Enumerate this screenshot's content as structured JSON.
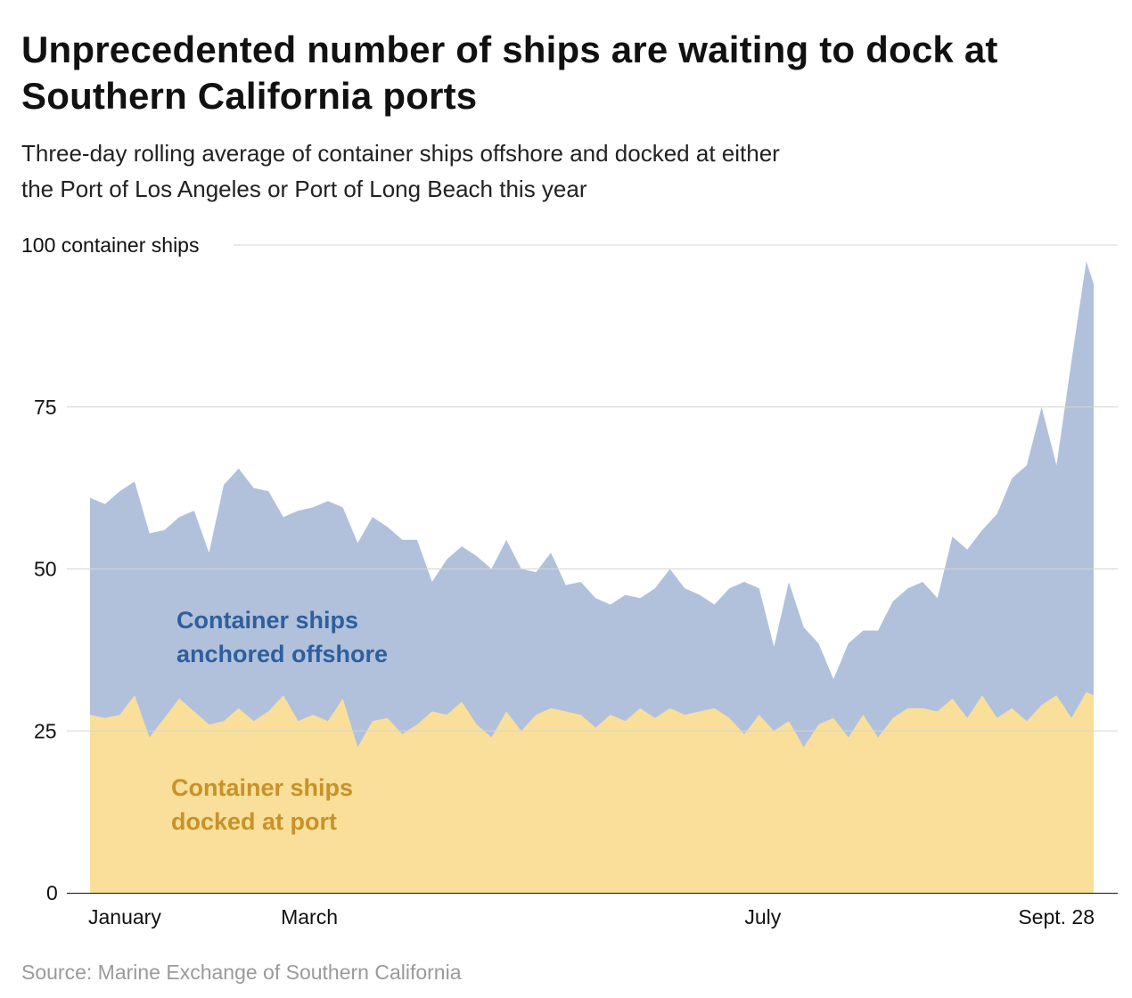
{
  "header": {
    "title": "Unprecedented number of ships are waiting to dock at Southern California ports",
    "subtitle_line1": "Three-day rolling average of container ships offshore and docked at either",
    "subtitle_line2": "the Port of Los Angeles or Port of Long Beach this year"
  },
  "footer": {
    "source": "Source: Marine Exchange of Southern California"
  },
  "colors": {
    "offshore": "#b1c1dc",
    "docked": "#f9df9a",
    "offshore_label": "#2e5f9c",
    "docked_label": "#c8922a",
    "grid": "#d4d4d4",
    "axis": "#333333"
  },
  "chart_data": {
    "type": "area",
    "stacked": true,
    "title": "Unprecedented number of ships are waiting to dock at Southern California ports",
    "ylabel": "",
    "y_unit_label": "100 container ships",
    "ylim": [
      0,
      100
    ],
    "yticks": [
      {
        "value": 0,
        "label": "0"
      },
      {
        "value": 25,
        "label": "25"
      },
      {
        "value": 50,
        "label": "50"
      },
      {
        "value": 75,
        "label": "75"
      },
      {
        "value": 100,
        "label": "100 container ships"
      }
    ],
    "xlim": [
      "2021-01-01",
      "2021-09-28"
    ],
    "xticks": [
      {
        "date": "2021-01-01",
        "label": "January"
      },
      {
        "date": "2021-03-01",
        "label": "March"
      },
      {
        "date": "2021-07-01",
        "label": "July"
      },
      {
        "date": "2021-09-28",
        "label": "Sept. 28"
      }
    ],
    "grid": true,
    "series": [
      {
        "name": "Container ships docked at port",
        "label_line1": "Container ships",
        "label_line2": "docked at port",
        "points": [
          [
            "2021-01-01",
            27.5
          ],
          [
            "2021-01-05",
            27.0
          ],
          [
            "2021-01-09",
            27.5
          ],
          [
            "2021-01-13",
            30.5
          ],
          [
            "2021-01-17",
            24.0
          ],
          [
            "2021-01-21",
            27.0
          ],
          [
            "2021-01-25",
            30.0
          ],
          [
            "2021-01-29",
            28.0
          ],
          [
            "2021-02-02",
            26.0
          ],
          [
            "2021-02-06",
            26.5
          ],
          [
            "2021-02-10",
            28.5
          ],
          [
            "2021-02-14",
            26.5
          ],
          [
            "2021-02-18",
            28.0
          ],
          [
            "2021-02-22",
            30.5
          ],
          [
            "2021-02-26",
            26.5
          ],
          [
            "2021-03-02",
            27.5
          ],
          [
            "2021-03-06",
            26.5
          ],
          [
            "2021-03-10",
            30.0
          ],
          [
            "2021-03-14",
            22.5
          ],
          [
            "2021-03-18",
            26.5
          ],
          [
            "2021-03-22",
            27.0
          ],
          [
            "2021-03-26",
            24.5
          ],
          [
            "2021-03-30",
            26.0
          ],
          [
            "2021-04-03",
            28.0
          ],
          [
            "2021-04-07",
            27.5
          ],
          [
            "2021-04-11",
            29.5
          ],
          [
            "2021-04-15",
            26.0
          ],
          [
            "2021-04-19",
            24.0
          ],
          [
            "2021-04-23",
            28.0
          ],
          [
            "2021-04-27",
            25.0
          ],
          [
            "2021-05-01",
            27.5
          ],
          [
            "2021-05-05",
            28.5
          ],
          [
            "2021-05-09",
            28.0
          ],
          [
            "2021-05-13",
            27.5
          ],
          [
            "2021-05-17",
            25.5
          ],
          [
            "2021-05-21",
            27.5
          ],
          [
            "2021-05-25",
            26.5
          ],
          [
            "2021-05-29",
            28.5
          ],
          [
            "2021-06-02",
            27.0
          ],
          [
            "2021-06-06",
            28.5
          ],
          [
            "2021-06-10",
            27.5
          ],
          [
            "2021-06-14",
            28.0
          ],
          [
            "2021-06-18",
            28.5
          ],
          [
            "2021-06-22",
            27.0
          ],
          [
            "2021-06-26",
            24.5
          ],
          [
            "2021-06-30",
            27.5
          ],
          [
            "2021-07-04",
            25.0
          ],
          [
            "2021-07-08",
            26.5
          ],
          [
            "2021-07-12",
            22.5
          ],
          [
            "2021-07-16",
            26.0
          ],
          [
            "2021-07-20",
            27.0
          ],
          [
            "2021-07-24",
            24.0
          ],
          [
            "2021-07-28",
            27.5
          ],
          [
            "2021-08-01",
            24.0
          ],
          [
            "2021-08-05",
            27.0
          ],
          [
            "2021-08-09",
            28.5
          ],
          [
            "2021-08-13",
            28.5
          ],
          [
            "2021-08-17",
            28.0
          ],
          [
            "2021-08-21",
            30.0
          ],
          [
            "2021-08-25",
            27.0
          ],
          [
            "2021-08-29",
            30.5
          ],
          [
            "2021-09-02",
            27.0
          ],
          [
            "2021-09-06",
            28.5
          ],
          [
            "2021-09-10",
            26.5
          ],
          [
            "2021-09-14",
            29.0
          ],
          [
            "2021-09-18",
            30.5
          ],
          [
            "2021-09-22",
            27.0
          ],
          [
            "2021-09-26",
            31.0
          ],
          [
            "2021-09-28",
            30.5
          ]
        ]
      },
      {
        "name": "Container ships anchored offshore",
        "label_line1": "Container ships",
        "label_line2": "anchored offshore",
        "total_points": [
          [
            "2021-01-01",
            61.0
          ],
          [
            "2021-01-05",
            60.0
          ],
          [
            "2021-01-09",
            62.0
          ],
          [
            "2021-01-13",
            63.5
          ],
          [
            "2021-01-17",
            55.5
          ],
          [
            "2021-01-21",
            56.0
          ],
          [
            "2021-01-25",
            58.0
          ],
          [
            "2021-01-29",
            59.0
          ],
          [
            "2021-02-02",
            52.5
          ],
          [
            "2021-02-06",
            63.0
          ],
          [
            "2021-02-10",
            65.5
          ],
          [
            "2021-02-14",
            62.5
          ],
          [
            "2021-02-18",
            62.0
          ],
          [
            "2021-02-22",
            58.0
          ],
          [
            "2021-02-26",
            59.0
          ],
          [
            "2021-03-02",
            59.5
          ],
          [
            "2021-03-06",
            60.5
          ],
          [
            "2021-03-10",
            59.5
          ],
          [
            "2021-03-14",
            54.0
          ],
          [
            "2021-03-18",
            58.0
          ],
          [
            "2021-03-22",
            56.5
          ],
          [
            "2021-03-26",
            54.5
          ],
          [
            "2021-03-30",
            54.5
          ],
          [
            "2021-04-03",
            48.0
          ],
          [
            "2021-04-07",
            51.5
          ],
          [
            "2021-04-11",
            53.5
          ],
          [
            "2021-04-15",
            52.0
          ],
          [
            "2021-04-19",
            50.0
          ],
          [
            "2021-04-23",
            54.5
          ],
          [
            "2021-04-27",
            50.0
          ],
          [
            "2021-05-01",
            49.5
          ],
          [
            "2021-05-05",
            52.5
          ],
          [
            "2021-05-09",
            47.5
          ],
          [
            "2021-05-13",
            48.0
          ],
          [
            "2021-05-17",
            45.5
          ],
          [
            "2021-05-21",
            44.5
          ],
          [
            "2021-05-25",
            46.0
          ],
          [
            "2021-05-29",
            45.5
          ],
          [
            "2021-06-02",
            47.0
          ],
          [
            "2021-06-06",
            50.0
          ],
          [
            "2021-06-10",
            47.0
          ],
          [
            "2021-06-14",
            46.0
          ],
          [
            "2021-06-18",
            44.5
          ],
          [
            "2021-06-22",
            47.0
          ],
          [
            "2021-06-26",
            48.0
          ],
          [
            "2021-06-30",
            47.0
          ],
          [
            "2021-07-04",
            38.0
          ],
          [
            "2021-07-08",
            48.0
          ],
          [
            "2021-07-12",
            41.0
          ],
          [
            "2021-07-16",
            38.5
          ],
          [
            "2021-07-20",
            33.0
          ],
          [
            "2021-07-24",
            38.5
          ],
          [
            "2021-07-28",
            40.5
          ],
          [
            "2021-08-01",
            40.5
          ],
          [
            "2021-08-05",
            45.0
          ],
          [
            "2021-08-09",
            47.0
          ],
          [
            "2021-08-13",
            48.0
          ],
          [
            "2021-08-17",
            45.5
          ],
          [
            "2021-08-21",
            55.0
          ],
          [
            "2021-08-25",
            53.0
          ],
          [
            "2021-08-29",
            56.0
          ],
          [
            "2021-09-02",
            58.5
          ],
          [
            "2021-09-06",
            64.0
          ],
          [
            "2021-09-10",
            66.0
          ],
          [
            "2021-09-14",
            75.0
          ],
          [
            "2021-09-18",
            66.0
          ],
          [
            "2021-09-22",
            82.0
          ],
          [
            "2021-09-26",
            97.5
          ],
          [
            "2021-09-28",
            94.0
          ]
        ]
      }
    ]
  }
}
